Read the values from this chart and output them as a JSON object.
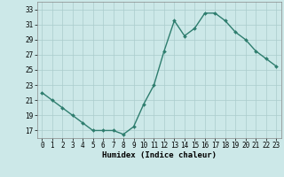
{
  "x": [
    0,
    1,
    2,
    3,
    4,
    5,
    6,
    7,
    8,
    9,
    10,
    11,
    12,
    13,
    14,
    15,
    16,
    17,
    18,
    19,
    20,
    21,
    22,
    23
  ],
  "y": [
    22,
    21,
    20,
    19,
    18,
    17,
    17,
    17,
    16.5,
    17.5,
    20.5,
    23,
    27.5,
    31.5,
    29.5,
    30.5,
    32.5,
    32.5,
    31.5,
    30,
    29,
    27.5,
    26.5,
    25.5
  ],
  "line_color": "#2e7d6e",
  "marker": "D",
  "marker_size": 2.0,
  "background_color": "#cce8e8",
  "grid_color": "#aacccc",
  "xlabel": "Humidex (Indice chaleur)",
  "xlim": [
    -0.5,
    23.5
  ],
  "ylim": [
    16,
    34
  ],
  "yticks": [
    17,
    19,
    21,
    23,
    25,
    27,
    29,
    31,
    33
  ],
  "xticks": [
    0,
    1,
    2,
    3,
    4,
    5,
    6,
    7,
    8,
    9,
    10,
    11,
    12,
    13,
    14,
    15,
    16,
    17,
    18,
    19,
    20,
    21,
    22,
    23
  ],
  "xlabel_fontsize": 6.5,
  "tick_fontsize": 5.5,
  "line_width": 1.0
}
